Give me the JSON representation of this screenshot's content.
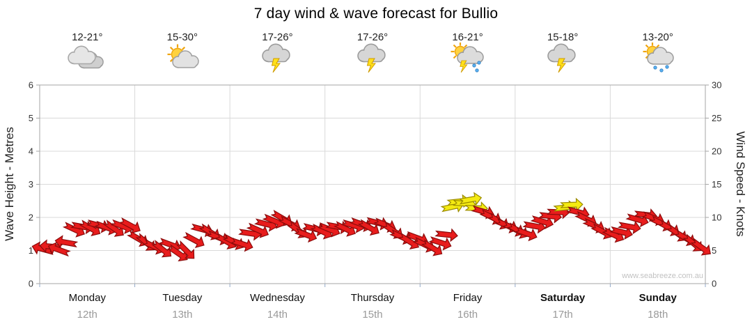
{
  "title": "7 day wind & wave forecast for Bullio",
  "watermark": "www.seabreeze.com.au",
  "days": [
    {
      "name": "Monday",
      "date": "12th",
      "temp": "12-21°",
      "icon": "cloudy",
      "bold": false
    },
    {
      "name": "Tuesday",
      "date": "13th",
      "temp": "15-30°",
      "icon": "partly-cloudy",
      "bold": false
    },
    {
      "name": "Wednesday",
      "date": "14th",
      "temp": "17-26°",
      "icon": "storm",
      "bold": false
    },
    {
      "name": "Thursday",
      "date": "15th",
      "temp": "17-26°",
      "icon": "storm",
      "bold": false
    },
    {
      "name": "Friday",
      "date": "16th",
      "temp": "16-21°",
      "icon": "sun-storm-rain",
      "bold": false
    },
    {
      "name": "Saturday",
      "date": "17th",
      "temp": "15-18°",
      "icon": "storm",
      "bold": true
    },
    {
      "name": "Sunday",
      "date": "18th",
      "temp": "13-20°",
      "icon": "sun-rain",
      "bold": true
    }
  ],
  "chart_data": {
    "type": "wind-arrows",
    "title": "7 day wind & wave forecast for Bullio",
    "left_axis": {
      "label": "Wave Height - Metres",
      "min": 0,
      "max": 6,
      "ticks": [
        0,
        1,
        2,
        3,
        4,
        5,
        6
      ]
    },
    "right_axis": {
      "label": "Wind Speed - Knots",
      "min": 0,
      "max": 30,
      "ticks": [
        0,
        5,
        10,
        15,
        20,
        25,
        30
      ]
    },
    "grid": "on",
    "colors": {
      "arrow_red": "#e81c1c",
      "arrow_red_outline": "#8b0b0b",
      "arrow_yellow": "#f4ea12",
      "arrow_yellow_outline": "#9a8a00",
      "grid": "#d9d9d9",
      "axis": "#a6a6a6",
      "tick": "#93a9c8"
    },
    "arrows_format": "t_fraction_of_week, wind_speed_knots, direction_deg, color(0=red,1=yellow)",
    "arrows": [
      [
        0.005,
        5.2,
        195,
        0
      ],
      [
        0.017,
        5.6,
        185,
        0
      ],
      [
        0.029,
        5.1,
        200,
        0
      ],
      [
        0.04,
        6.2,
        190,
        0
      ],
      [
        0.052,
        8.2,
        25,
        0
      ],
      [
        0.064,
        8.6,
        10,
        0
      ],
      [
        0.076,
        8.4,
        30,
        0
      ],
      [
        0.088,
        8.8,
        15,
        0
      ],
      [
        0.1,
        8.5,
        20,
        0
      ],
      [
        0.112,
        8.3,
        35,
        0
      ],
      [
        0.124,
        8.7,
        20,
        0
      ],
      [
        0.136,
        8.8,
        28,
        0
      ],
      [
        0.148,
        6.8,
        30,
        0
      ],
      [
        0.16,
        6.2,
        40,
        0
      ],
      [
        0.172,
        5.6,
        25,
        0
      ],
      [
        0.184,
        5.2,
        38,
        0
      ],
      [
        0.196,
        5.9,
        20,
        0
      ],
      [
        0.208,
        4.6,
        35,
        0
      ],
      [
        0.22,
        5.0,
        45,
        0
      ],
      [
        0.232,
        6.6,
        28,
        0
      ],
      [
        0.244,
        8.2,
        15,
        0
      ],
      [
        0.256,
        7.8,
        32,
        0
      ],
      [
        0.268,
        7.0,
        22,
        0
      ],
      [
        0.28,
        6.4,
        30,
        0
      ],
      [
        0.292,
        6.3,
        28,
        0
      ],
      [
        0.304,
        6.0,
        18,
        0
      ],
      [
        0.316,
        7.6,
        8,
        0
      ],
      [
        0.328,
        8.1,
        24,
        0
      ],
      [
        0.34,
        9.0,
        14,
        0
      ],
      [
        0.352,
        9.5,
        22,
        0
      ],
      [
        0.364,
        9.9,
        30,
        0
      ],
      [
        0.376,
        9.1,
        26,
        0
      ],
      [
        0.388,
        8.1,
        36,
        0
      ],
      [
        0.4,
        7.4,
        20,
        0
      ],
      [
        0.412,
        8.3,
        14,
        0
      ],
      [
        0.424,
        7.9,
        26,
        0
      ],
      [
        0.435,
        8.2,
        22,
        0
      ],
      [
        0.447,
        8.6,
        10,
        0
      ],
      [
        0.459,
        8.3,
        26,
        0
      ],
      [
        0.471,
        8.8,
        16,
        0
      ],
      [
        0.483,
        9.0,
        20,
        0
      ],
      [
        0.495,
        8.5,
        30,
        0
      ],
      [
        0.507,
        9.2,
        14,
        0
      ],
      [
        0.519,
        8.9,
        22,
        0
      ],
      [
        0.531,
        8.0,
        34,
        0
      ],
      [
        0.543,
        7.1,
        24,
        0
      ],
      [
        0.555,
        6.4,
        32,
        0
      ],
      [
        0.567,
        6.9,
        20,
        0
      ],
      [
        0.578,
        5.9,
        26,
        0
      ],
      [
        0.59,
        5.4,
        32,
        0
      ],
      [
        0.602,
        6.2,
        18,
        0
      ],
      [
        0.611,
        7.4,
        6,
        0
      ],
      [
        0.62,
        11.6,
        -12,
        1
      ],
      [
        0.629,
        12.4,
        -6,
        1
      ],
      [
        0.638,
        12.1,
        4,
        1
      ],
      [
        0.647,
        12.7,
        -10,
        1
      ],
      [
        0.656,
        11.4,
        2,
        1
      ],
      [
        0.666,
        10.9,
        16,
        0
      ],
      [
        0.678,
        10.1,
        26,
        0
      ],
      [
        0.69,
        9.4,
        32,
        0
      ],
      [
        0.702,
        8.8,
        22,
        0
      ],
      [
        0.712,
        8.3,
        26,
        0
      ],
      [
        0.719,
        8.0,
        30,
        0
      ],
      [
        0.731,
        7.6,
        20,
        0
      ],
      [
        0.743,
        8.7,
        10,
        0
      ],
      [
        0.755,
        9.4,
        16,
        0
      ],
      [
        0.767,
        10.2,
        6,
        0
      ],
      [
        0.779,
        10.8,
        2,
        0
      ],
      [
        0.789,
        11.5,
        -6,
        1
      ],
      [
        0.799,
        11.9,
        -2,
        1
      ],
      [
        0.809,
        10.8,
        14,
        0
      ],
      [
        0.821,
        9.8,
        26,
        0
      ],
      [
        0.833,
        8.8,
        24,
        0
      ],
      [
        0.845,
        7.9,
        28,
        0
      ],
      [
        0.862,
        7.4,
        26,
        0
      ],
      [
        0.874,
        7.8,
        14,
        0
      ],
      [
        0.886,
        8.6,
        10,
        0
      ],
      [
        0.898,
        9.7,
        16,
        0
      ],
      [
        0.91,
        10.4,
        6,
        0
      ],
      [
        0.922,
        9.9,
        20,
        0
      ],
      [
        0.934,
        9.1,
        26,
        0
      ],
      [
        0.946,
        8.4,
        30,
        0
      ],
      [
        0.958,
        7.6,
        36,
        0
      ],
      [
        0.97,
        6.9,
        30,
        0
      ],
      [
        0.982,
        6.1,
        40,
        0
      ],
      [
        0.994,
        5.5,
        36,
        0
      ]
    ]
  }
}
